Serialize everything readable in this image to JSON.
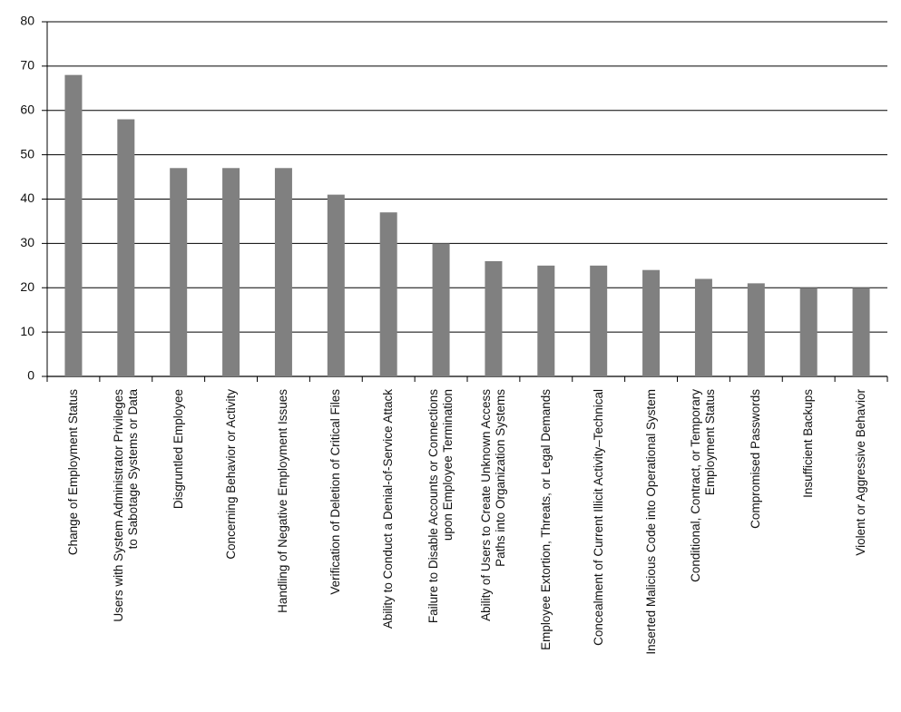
{
  "chart_data": {
    "type": "bar",
    "categories": [
      "Change of Employment Status",
      "Users with System Administrator Privileges\nto Sabotage Systems or Data",
      "Disgruntled Employee",
      "Concerning Behavior or Activity",
      "Handling of Negative Employment Issues",
      "Verification of Deletion of Critical Files",
      "Ability to Conduct a Denial-of-Service Attack",
      "Failure to Disable Accounts or Connections\nupon Employee Termination",
      "Ability of Users to Create Unknown Access\nPaths into Organization Systems",
      "Employee Extortion, Threats, or Legal Demands",
      "Concealment of Current Illicit Activity–Technical",
      "Inserted Malicious Code into Operational System",
      "Conditional, Contract, or Temporary\nEmployment Status",
      "Compromised Passwords",
      "Insufficient Backups",
      "Violent or Aggressive Behavior"
    ],
    "values": [
      68,
      58,
      47,
      47,
      47,
      41,
      37,
      30,
      26,
      25,
      25,
      24,
      22,
      21,
      20,
      20
    ],
    "color": "#808080",
    "ylim": [
      0,
      80
    ],
    "yticks": [
      0,
      10,
      20,
      30,
      40,
      50,
      60,
      70,
      80
    ],
    "grid": true
  }
}
